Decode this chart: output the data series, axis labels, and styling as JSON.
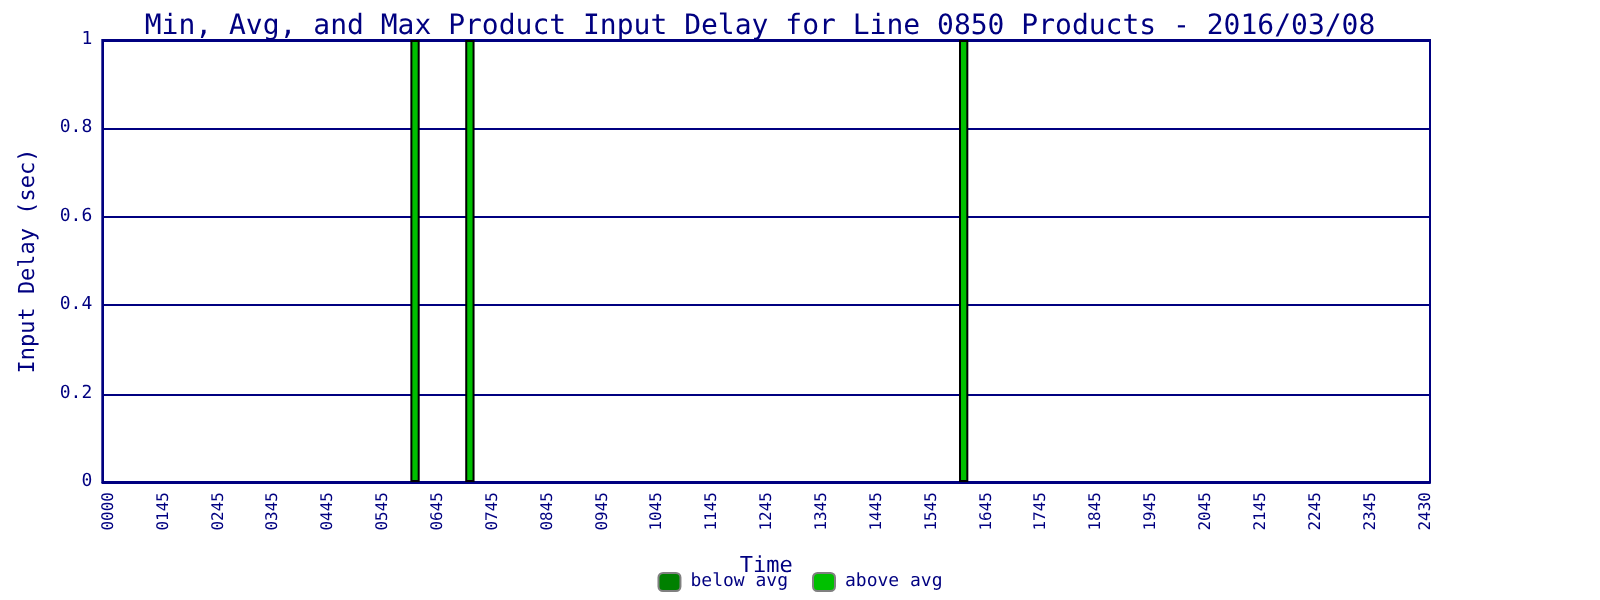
{
  "chart_data": {
    "type": "bar",
    "title": "Min, Avg, and Max Product Input Delay for Line 0850 Products - 2016/03/08",
    "xlabel": "Time",
    "ylabel": "Input Delay (sec)",
    "categories": [
      "0000",
      null,
      null,
      null,
      null,
      "0145",
      null,
      null,
      null,
      null,
      "0245",
      null,
      null,
      null,
      null,
      "0345",
      null,
      null,
      null,
      null,
      "0445",
      null,
      null,
      null,
      null,
      "0545",
      null,
      null,
      null,
      null,
      "0645",
      null,
      null,
      null,
      null,
      "0745",
      null,
      null,
      null,
      null,
      "0845",
      null,
      null,
      null,
      null,
      "0945",
      null,
      null,
      null,
      null,
      "1045",
      null,
      null,
      null,
      null,
      "1145",
      null,
      null,
      null,
      null,
      "1245",
      null,
      null,
      null,
      null,
      "1345",
      null,
      null,
      null,
      null,
      "1445",
      null,
      null,
      null,
      null,
      "1545",
      null,
      null,
      null,
      null,
      "1645",
      null,
      null,
      null,
      null,
      "1745",
      null,
      null,
      null,
      null,
      "1845",
      null,
      null,
      null,
      null,
      "1945",
      null,
      null,
      null,
      null,
      "2045",
      null,
      null,
      null,
      null,
      "2145",
      null,
      null,
      null,
      null,
      "2245",
      null,
      null,
      null,
      null,
      "2345",
      null,
      null,
      null,
      null,
      "2430"
    ],
    "stacked": true,
    "series": [
      {
        "name": "below avg",
        "color": "#008000",
        "values": [
          null,
          null,
          null,
          null,
          null,
          null,
          null,
          null,
          null,
          null,
          null,
          null,
          null,
          null,
          null,
          null,
          null,
          null,
          null,
          null,
          null,
          null,
          null,
          null,
          null,
          null,
          null,
          null,
          null,
          null,
          null,
          null,
          null,
          null,
          null,
          null,
          null,
          null,
          null,
          null,
          null,
          null,
          null,
          null,
          null,
          null,
          null,
          null,
          null,
          null,
          null,
          null,
          null,
          null,
          null,
          null,
          null,
          null,
          null,
          null,
          null,
          null,
          null,
          null,
          null,
          null,
          null,
          null,
          null,
          null,
          null,
          null,
          null,
          null,
          null,
          null,
          null,
          null,
          null,
          null,
          null,
          null,
          null,
          null,
          null,
          null,
          null,
          null,
          null,
          null,
          null,
          null,
          null,
          null,
          null,
          null,
          null,
          null,
          null,
          null,
          null,
          null,
          null,
          null,
          null,
          null,
          null,
          null,
          null,
          null,
          null,
          null,
          null,
          null,
          null,
          null,
          null,
          null,
          null,
          null,
          null
        ]
      },
      {
        "name": "above avg",
        "color": "#00c000",
        "values": [
          null,
          null,
          null,
          null,
          null,
          null,
          null,
          null,
          null,
          null,
          null,
          null,
          null,
          null,
          null,
          null,
          null,
          null,
          null,
          null,
          null,
          null,
          null,
          null,
          null,
          null,
          null,
          null,
          1,
          null,
          null,
          null,
          null,
          1,
          null,
          null,
          null,
          null,
          null,
          null,
          null,
          null,
          null,
          null,
          null,
          null,
          null,
          null,
          null,
          null,
          null,
          null,
          null,
          null,
          null,
          null,
          null,
          null,
          null,
          null,
          null,
          null,
          null,
          null,
          null,
          null,
          null,
          null,
          null,
          null,
          null,
          null,
          null,
          null,
          null,
          null,
          null,
          null,
          1,
          null,
          null,
          null,
          null,
          null,
          null,
          null,
          null,
          null,
          null,
          null,
          null,
          null,
          null,
          null,
          null,
          null,
          null,
          null,
          null,
          null,
          null,
          null,
          null,
          null,
          null,
          null,
          null,
          null,
          null,
          null,
          null,
          null,
          null,
          null,
          null,
          null,
          null,
          null,
          null,
          null,
          null
        ]
      }
    ],
    "ylim": [
      0,
      1
    ],
    "yticks": [
      0,
      0.2,
      0.4,
      0.6,
      0.8,
      1
    ],
    "grid": "y",
    "legend": "bottom"
  }
}
